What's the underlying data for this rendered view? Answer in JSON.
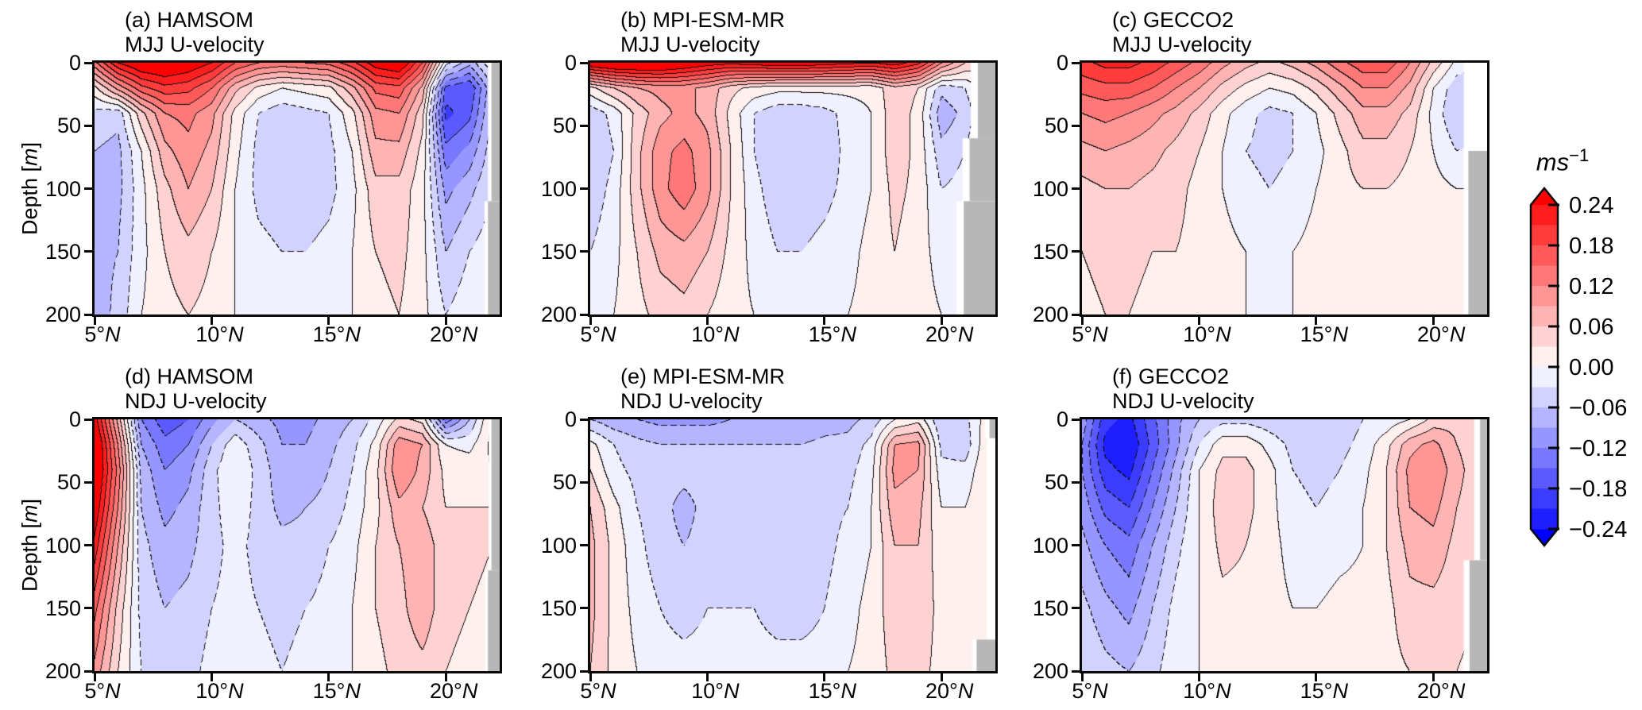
{
  "figure": {
    "background": "#ffffff",
    "land_color": "#b7b7b7",
    "frame_color": "#0a0a0a"
  },
  "axes": {
    "ylabel_prefix": "Depth [",
    "ylabel_m": "m",
    "ylabel_suffix": "]",
    "yticks": [
      "0",
      "50",
      "100",
      "150",
      "200"
    ],
    "ytick_values": [
      0,
      50,
      100,
      150,
      200
    ],
    "xticks": [
      "5",
      "10",
      "15",
      "20"
    ],
    "xtick_values": [
      5,
      10,
      15,
      20
    ],
    "degree": "°",
    "north": "N",
    "lat_min": 5,
    "lat_max": 22.3,
    "depth_min": 0,
    "depth_max": 200
  },
  "colorbar": {
    "unit_base": "ms",
    "unit_exp": "−1",
    "tick_labels": [
      "0.24",
      "0.18",
      "0.12",
      "0.06",
      "0.00",
      "−0.06",
      "−0.12",
      "−0.18",
      "−0.24"
    ],
    "tick_values": [
      0.24,
      0.18,
      0.12,
      0.06,
      0.0,
      -0.06,
      -0.12,
      -0.18,
      -0.24
    ],
    "vmin": -0.24,
    "vmax": 0.24,
    "band_interval": 0.03,
    "max_red": "#ff0000",
    "max_blue": "#0000ff",
    "mid_white": "#ffffff"
  },
  "chart_data": {
    "type": "heatmap",
    "note": "Filled-contour latitude-depth sections of zonal (U) velocity; solid contours positive, dashed negative; contour interval 0.03 m/s; grey = bathymetry/land near the northern boundary.",
    "x_lats": [
      5,
      6,
      7,
      8,
      9,
      10,
      11,
      12,
      13,
      14,
      15,
      16,
      17,
      18,
      19,
      20,
      21,
      22
    ],
    "y_depths": [
      0,
      20,
      40,
      70,
      100,
      150,
      200
    ],
    "panels": [
      {
        "id": "a",
        "title_line1": "(a) HAMSOM",
        "title_line2": "MJJ U-velocity",
        "model": "HAMSOM",
        "season": "MJJ",
        "grid": [
          [
            0.14,
            0.24,
            0.28,
            0.29,
            0.27,
            0.24,
            0.18,
            0.15,
            0.14,
            0.15,
            0.16,
            0.2,
            0.26,
            0.28,
            0.18,
            -0.02,
            -0.08,
            0.0
          ],
          [
            0.02,
            0.1,
            0.17,
            0.2,
            0.19,
            0.15,
            0.07,
            0.02,
            0.0,
            0.01,
            0.02,
            0.08,
            0.16,
            0.17,
            0.08,
            -0.16,
            -0.18,
            -0.06
          ],
          [
            -0.04,
            -0.05,
            0.05,
            0.12,
            0.13,
            0.1,
            0.02,
            -0.03,
            -0.05,
            -0.04,
            -0.03,
            0.02,
            0.11,
            0.12,
            0.04,
            -0.19,
            -0.16,
            -0.05
          ],
          [
            -0.06,
            -0.07,
            0.0,
            0.08,
            0.11,
            0.08,
            0.01,
            -0.04,
            -0.05,
            -0.05,
            -0.04,
            0.0,
            0.08,
            0.08,
            0.02,
            -0.14,
            -0.11,
            -0.04
          ],
          [
            -0.07,
            -0.07,
            -0.01,
            0.05,
            0.09,
            0.06,
            0.0,
            -0.04,
            -0.05,
            -0.05,
            -0.04,
            -0.01,
            0.05,
            0.05,
            0.01,
            -0.1,
            -0.07,
            -0.03
          ],
          [
            -0.07,
            -0.06,
            -0.01,
            0.03,
            0.05,
            0.03,
            0.0,
            -0.02,
            -0.03,
            -0.03,
            -0.02,
            0.0,
            0.03,
            0.04,
            0.01,
            -0.06,
            -0.03,
            -0.01
          ],
          [
            -0.08,
            -0.05,
            0.0,
            0.02,
            0.03,
            0.02,
            0.0,
            -0.01,
            -0.02,
            -0.02,
            -0.01,
            0.0,
            0.02,
            0.03,
            0.01,
            -0.03,
            -0.01,
            0.0
          ]
        ],
        "land_steps": [
          [
            0,
            110,
            21.95
          ],
          [
            110,
            200,
            21.8
          ]
        ],
        "gap_deg": 0.15,
        "white_steps": []
      },
      {
        "id": "b",
        "title_line1": "(b) MPI-ESM-MR",
        "title_line2": "MJJ U-velocity",
        "model": "MPI-ESM-MR",
        "season": "MJJ",
        "grid": [
          [
            0.28,
            0.3,
            0.3,
            0.3,
            0.28,
            0.26,
            0.25,
            0.26,
            0.27,
            0.27,
            0.26,
            0.25,
            0.24,
            0.26,
            0.22,
            0.12,
            0.06,
            0.04
          ],
          [
            0.02,
            0.06,
            0.09,
            0.1,
            0.1,
            0.08,
            0.04,
            0.02,
            0.01,
            0.01,
            0.01,
            0.01,
            0.01,
            0.05,
            0.03,
            -0.05,
            -0.03,
            0.02
          ],
          [
            -0.05,
            -0.02,
            0.04,
            0.08,
            0.1,
            0.08,
            0.02,
            -0.03,
            -0.05,
            -0.05,
            -0.04,
            -0.02,
            0.0,
            0.05,
            0.02,
            -0.08,
            -0.05,
            0.01
          ],
          [
            -0.06,
            -0.03,
            0.05,
            0.11,
            0.13,
            0.1,
            0.03,
            -0.03,
            -0.06,
            -0.06,
            -0.05,
            -0.02,
            0.0,
            0.05,
            0.02,
            -0.05,
            -0.03,
            0.01
          ],
          [
            -0.05,
            -0.02,
            0.05,
            0.11,
            0.14,
            0.1,
            0.03,
            -0.02,
            -0.05,
            -0.05,
            -0.04,
            -0.02,
            0.0,
            0.04,
            0.02,
            -0.03,
            -0.02,
            0.01
          ],
          [
            -0.03,
            -0.01,
            0.03,
            0.07,
            0.08,
            0.06,
            0.02,
            -0.01,
            -0.03,
            -0.03,
            -0.02,
            -0.01,
            0.01,
            0.03,
            0.01,
            -0.01,
            0.0,
            0.0
          ],
          [
            -0.02,
            0.0,
            0.02,
            0.04,
            0.05,
            0.03,
            0.01,
            0.0,
            -0.01,
            -0.01,
            -0.01,
            0.0,
            0.01,
            0.02,
            0.01,
            0.0,
            0.0,
            0.0
          ]
        ],
        "land_steps": [
          [
            0,
            60,
            21.55
          ],
          [
            60,
            110,
            21.2
          ],
          [
            110,
            200,
            20.95
          ]
        ],
        "gap_deg": 0.3,
        "white_steps": []
      },
      {
        "id": "c",
        "title_line1": "(c) GECCO2",
        "title_line2": "MJJ U-velocity",
        "model": "GECCO2",
        "season": "MJJ",
        "grid": [
          [
            0.2,
            0.22,
            0.22,
            0.2,
            0.17,
            0.14,
            0.1,
            0.07,
            0.05,
            0.07,
            0.1,
            0.14,
            0.17,
            0.17,
            0.12,
            0.05,
            -0.01,
            -0.03
          ],
          [
            0.16,
            0.17,
            0.17,
            0.15,
            0.12,
            0.09,
            0.05,
            0.02,
            0.0,
            0.01,
            0.04,
            0.08,
            0.12,
            0.12,
            0.08,
            0.0,
            -0.05,
            -0.06
          ],
          [
            0.12,
            0.13,
            0.12,
            0.1,
            0.08,
            0.05,
            0.01,
            -0.02,
            -0.04,
            -0.03,
            0.0,
            0.04,
            0.08,
            0.08,
            0.05,
            -0.01,
            -0.06,
            -0.05
          ],
          [
            0.08,
            0.09,
            0.08,
            0.07,
            0.05,
            0.03,
            0.0,
            -0.03,
            -0.04,
            -0.03,
            -0.01,
            0.02,
            0.05,
            0.05,
            0.03,
            0.0,
            -0.03,
            -0.02
          ],
          [
            0.05,
            0.06,
            0.06,
            0.05,
            0.04,
            0.02,
            0.0,
            -0.02,
            -0.03,
            -0.02,
            0.0,
            0.02,
            0.03,
            0.03,
            0.02,
            0.01,
            0.0,
            0.0
          ],
          [
            0.03,
            0.04,
            0.04,
            0.03,
            0.03,
            0.02,
            0.01,
            0.0,
            -0.01,
            0.0,
            0.01,
            0.01,
            0.02,
            0.02,
            0.02,
            0.01,
            0.01,
            0.01
          ],
          [
            0.02,
            0.03,
            0.03,
            0.02,
            0.02,
            0.01,
            0.01,
            0.0,
            0.0,
            0.0,
            0.01,
            0.01,
            0.01,
            0.01,
            0.01,
            0.01,
            0.01,
            0.01
          ]
        ],
        "land_steps": [
          [
            70,
            200,
            21.5
          ]
        ],
        "gap_deg": 0.2,
        "white_steps": [
          [
            0,
            70,
            21.3
          ]
        ]
      },
      {
        "id": "d",
        "title_line1": "(d) HAMSOM",
        "title_line2": "NDJ U-velocity",
        "model": "HAMSOM",
        "season": "NDJ",
        "grid": [
          [
            0.26,
            0.08,
            -0.12,
            -0.17,
            -0.15,
            -0.1,
            -0.06,
            -0.08,
            -0.1,
            -0.1,
            -0.08,
            -0.06,
            -0.02,
            0.04,
            0.02,
            -0.14,
            -0.06,
            0.04
          ],
          [
            0.3,
            0.12,
            -0.09,
            -0.14,
            -0.12,
            -0.06,
            -0.01,
            -0.05,
            -0.09,
            -0.09,
            -0.07,
            -0.04,
            0.01,
            0.11,
            0.09,
            0.0,
            -0.01,
            0.04
          ],
          [
            0.3,
            0.14,
            -0.07,
            -0.12,
            -0.1,
            -0.04,
            0.0,
            -0.04,
            -0.08,
            -0.08,
            -0.06,
            -0.03,
            0.02,
            0.12,
            0.08,
            0.02,
            0.02,
            0.03
          ],
          [
            0.27,
            0.12,
            -0.06,
            -0.1,
            -0.08,
            -0.04,
            -0.01,
            -0.04,
            -0.07,
            -0.06,
            -0.05,
            -0.02,
            0.02,
            0.08,
            0.06,
            0.03,
            0.03,
            0.03
          ],
          [
            0.23,
            0.09,
            -0.05,
            -0.08,
            -0.07,
            -0.04,
            -0.02,
            -0.04,
            -0.05,
            -0.05,
            -0.03,
            -0.01,
            0.03,
            0.06,
            0.08,
            0.04,
            0.04,
            0.03
          ],
          [
            0.16,
            0.05,
            -0.04,
            -0.06,
            -0.05,
            -0.03,
            -0.02,
            -0.03,
            -0.04,
            -0.03,
            -0.02,
            0.0,
            0.03,
            0.05,
            0.08,
            0.04,
            0.03,
            0.02
          ],
          [
            0.11,
            0.03,
            -0.03,
            -0.04,
            -0.04,
            -0.02,
            -0.01,
            -0.02,
            -0.03,
            -0.02,
            -0.01,
            0.0,
            0.02,
            0.04,
            0.05,
            0.03,
            0.02,
            0.02
          ]
        ],
        "land_steps": [
          [
            0,
            120,
            21.95
          ],
          [
            120,
            200,
            21.8
          ]
        ],
        "gap_deg": 0.12,
        "white_steps": []
      },
      {
        "id": "e",
        "title_line1": "(e) MPI-ESM-MR",
        "title_line2": "NDJ U-velocity",
        "model": "MPI-ESM-MR",
        "season": "NDJ",
        "grid": [
          [
            -0.06,
            -0.08,
            -0.09,
            -0.1,
            -0.1,
            -0.1,
            -0.09,
            -0.09,
            -0.09,
            -0.09,
            -0.08,
            -0.07,
            -0.05,
            0.0,
            0.02,
            -0.06,
            -0.04,
            0.02
          ],
          [
            0.01,
            -0.03,
            -0.05,
            -0.06,
            -0.06,
            -0.06,
            -0.06,
            -0.06,
            -0.06,
            -0.06,
            -0.05,
            -0.05,
            -0.02,
            0.09,
            0.1,
            -0.04,
            -0.05,
            0.03
          ],
          [
            0.03,
            -0.02,
            -0.04,
            -0.05,
            -0.05,
            -0.05,
            -0.05,
            -0.05,
            -0.05,
            -0.05,
            -0.05,
            -0.04,
            -0.01,
            0.1,
            0.09,
            -0.02,
            -0.02,
            0.03
          ],
          [
            0.06,
            0.01,
            -0.03,
            -0.05,
            -0.07,
            -0.05,
            -0.04,
            -0.04,
            -0.05,
            -0.05,
            -0.04,
            -0.03,
            0.0,
            0.08,
            0.07,
            0.0,
            0.0,
            0.03
          ],
          [
            0.07,
            0.02,
            -0.02,
            -0.05,
            -0.06,
            -0.05,
            -0.04,
            -0.04,
            -0.05,
            -0.06,
            -0.04,
            -0.02,
            0.0,
            0.06,
            0.06,
            0.01,
            0.01,
            0.02
          ],
          [
            0.07,
            0.02,
            -0.01,
            -0.03,
            -0.04,
            -0.03,
            -0.03,
            -0.03,
            -0.04,
            -0.04,
            -0.03,
            -0.01,
            0.01,
            0.05,
            0.05,
            0.02,
            0.01,
            0.02
          ],
          [
            0.06,
            0.02,
            0.0,
            -0.02,
            -0.02,
            -0.02,
            -0.02,
            -0.02,
            -0.02,
            -0.02,
            -0.02,
            0.0,
            0.01,
            0.04,
            0.04,
            0.02,
            0.01,
            0.01
          ]
        ],
        "land_steps": [
          [
            0,
            15,
            22.05
          ],
          [
            175,
            200,
            21.5
          ]
        ],
        "gap_deg": 0.2,
        "white_steps": [
          [
            15,
            175,
            21.95
          ]
        ]
      },
      {
        "id": "f",
        "title_line1": "(f) GECCO2",
        "title_line2": "NDJ U-velocity",
        "model": "GECCO2",
        "season": "NDJ",
        "grid": [
          [
            -0.1,
            -0.2,
            -0.22,
            -0.16,
            -0.1,
            -0.06,
            -0.04,
            -0.04,
            -0.05,
            -0.06,
            -0.06,
            -0.05,
            -0.03,
            -0.02,
            0.0,
            0.04,
            0.05,
            0.05
          ],
          [
            -0.12,
            -0.22,
            -0.24,
            -0.17,
            -0.1,
            -0.03,
            0.02,
            0.02,
            -0.01,
            -0.04,
            -0.05,
            -0.04,
            -0.02,
            0.02,
            0.08,
            0.1,
            0.06,
            0.04
          ],
          [
            -0.12,
            -0.2,
            -0.22,
            -0.15,
            -0.08,
            0.0,
            0.04,
            0.04,
            0.01,
            -0.03,
            -0.04,
            -0.03,
            -0.01,
            0.03,
            0.1,
            0.12,
            0.07,
            0.04
          ],
          [
            -0.1,
            -0.16,
            -0.18,
            -0.12,
            -0.06,
            0.0,
            0.05,
            0.04,
            0.01,
            -0.02,
            -0.03,
            -0.02,
            0.0,
            0.03,
            0.09,
            0.1,
            0.06,
            0.04
          ],
          [
            -0.08,
            -0.12,
            -0.14,
            -0.09,
            -0.04,
            0.0,
            0.04,
            0.03,
            0.01,
            -0.01,
            -0.02,
            -0.01,
            0.0,
            0.03,
            0.07,
            0.08,
            0.05,
            0.04
          ],
          [
            -0.05,
            -0.08,
            -0.1,
            -0.06,
            -0.02,
            0.0,
            0.02,
            0.02,
            0.01,
            0.0,
            0.0,
            0.01,
            0.01,
            0.02,
            0.05,
            0.05,
            0.04,
            0.03
          ],
          [
            -0.03,
            -0.05,
            -0.06,
            -0.04,
            -0.01,
            0.0,
            0.01,
            0.01,
            0.01,
            0.01,
            0.01,
            0.01,
            0.01,
            0.02,
            0.03,
            0.03,
            0.03,
            0.02
          ]
        ],
        "land_steps": [
          [
            0,
            112,
            22.0
          ],
          [
            112,
            200,
            21.55
          ]
        ],
        "gap_deg": 0.25,
        "white_steps": []
      }
    ]
  }
}
